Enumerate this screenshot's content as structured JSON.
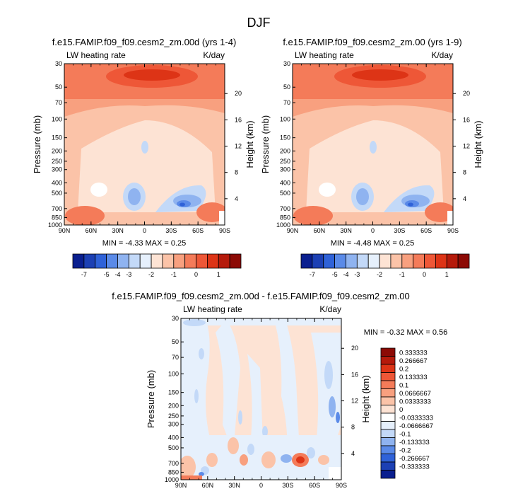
{
  "figure": {
    "title": "DJF"
  },
  "colormap": {
    "blues": [
      "#0a1f8f",
      "#1c40b4",
      "#2f62d8",
      "#5a8ae8",
      "#8fb3f0",
      "#c3d9f8",
      "#e6f0fc"
    ],
    "zero": "#ffffff",
    "reds": [
      "#fde3d4",
      "#fbc3a8",
      "#f8a07f",
      "#f47b59",
      "#ee5737",
      "#dd3416",
      "#b51a0b",
      "#8c0a05"
    ]
  },
  "chart_data": [
    {
      "type": "heatmap",
      "title": "f.e15.FAMIP.f09_f09.cesm2_zm.00d (yrs 1-4)",
      "left_string": "LW heating rate",
      "right_string": "K/day",
      "ylabel": "Pressure (mb)",
      "ylabel_right": "Height (km)",
      "x_ticks": [
        "90N",
        "60N",
        "30N",
        "0",
        "30S",
        "60S",
        "90S"
      ],
      "y_ticks": [
        "30",
        "50",
        "70",
        "100",
        "150",
        "200",
        "250",
        "300",
        "400",
        "500",
        "700",
        "850",
        "1000"
      ],
      "height_ticks": [
        "20",
        "16",
        "12",
        "8",
        "4"
      ],
      "ylim": [
        1000,
        30
      ],
      "min_max": "MIN = -4.33 MAX = 0.25",
      "min": -4.33,
      "max": 0.25,
      "colorbar": {
        "orientation": "horizontal",
        "tick_labels": [
          "-7",
          "-5",
          "-4",
          "-3",
          "-2",
          "-1",
          "0",
          "1"
        ]
      }
    },
    {
      "type": "heatmap",
      "title": "f.e15.FAMIP.f09_f09.cesm2_zm.00 (yrs 1-9)",
      "left_string": "LW heating rate",
      "right_string": "K/day",
      "ylabel": "Pressure (mb)",
      "ylabel_right": "Height (km)",
      "x_ticks": [
        "90N",
        "60N",
        "30N",
        "0",
        "30S",
        "60S",
        "90S"
      ],
      "y_ticks": [
        "30",
        "50",
        "70",
        "100",
        "150",
        "200",
        "250",
        "300",
        "400",
        "500",
        "700",
        "850",
        "1000"
      ],
      "height_ticks": [
        "20",
        "16",
        "12",
        "8",
        "4"
      ],
      "ylim": [
        1000,
        30
      ],
      "min_max": "MIN = -4.48 MAX = 0.25",
      "min": -4.48,
      "max": 0.25,
      "colorbar": {
        "orientation": "horizontal",
        "tick_labels": [
          "-7",
          "-5",
          "-4",
          "-3",
          "-2",
          "-1",
          "0",
          "1"
        ]
      }
    },
    {
      "type": "heatmap",
      "title": "f.e15.FAMIP.f09_f09.cesm2_zm.00d - f.e15.FAMIP.f09_f09.cesm2_zm.00",
      "left_string": "LW heating rate",
      "right_string": "K/day",
      "ylabel": "Pressure (mb)",
      "ylabel_right": "Height (km)",
      "x_ticks": [
        "90N",
        "60N",
        "30N",
        "0",
        "30S",
        "60S",
        "90S"
      ],
      "y_ticks": [
        "30",
        "50",
        "70",
        "100",
        "150",
        "200",
        "250",
        "300",
        "400",
        "500",
        "700",
        "850",
        "1000"
      ],
      "height_ticks": [
        "20",
        "16",
        "12",
        "8",
        "4"
      ],
      "ylim": [
        1000,
        30
      ],
      "min_max": "MIN = -0.32 MAX = 0.56",
      "min": -0.32,
      "max": 0.56,
      "colorbar": {
        "orientation": "vertical",
        "tick_labels": [
          "0.333333",
          "0.266667",
          "0.2",
          "0.133333",
          "0.1",
          "0.0666667",
          "0.0333333",
          "0",
          "-0.0333333",
          "-0.0666667",
          "-0.1",
          "-0.133333",
          "-0.2",
          "-0.266667",
          "-0.333333"
        ]
      }
    }
  ]
}
